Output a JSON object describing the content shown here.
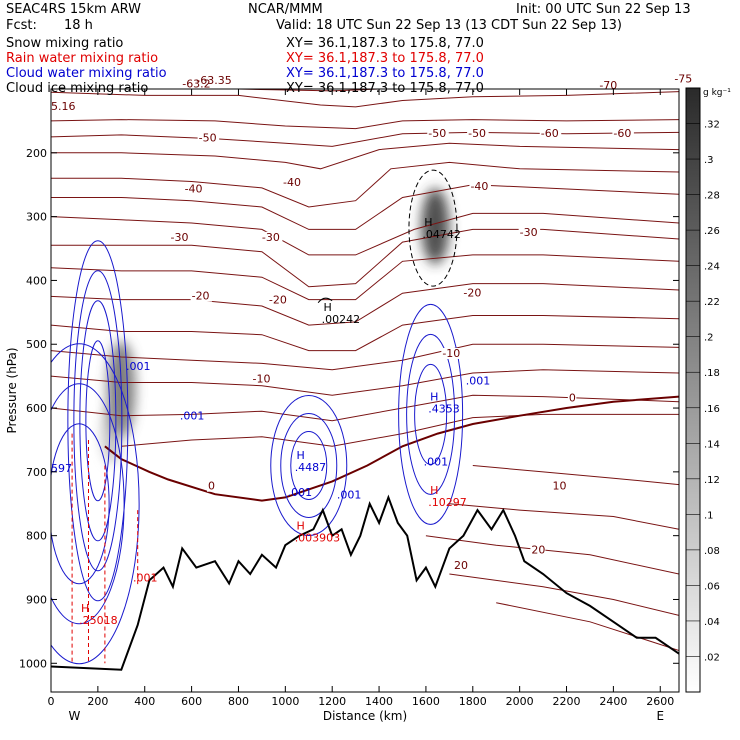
{
  "header": {
    "model": "SEAC4RS 15km ARW",
    "center": "NCAR/MMM",
    "init": "Init: 00 UTC Sun 22 Sep 13",
    "fcst_label": "Fcst:",
    "fcst_value": "18 h",
    "valid": "Valid: 18 UTC Sun 22 Sep 13 (13 CDT Sun 22 Sep 13)"
  },
  "fields": [
    {
      "name": "Snow mixing ratio",
      "xy": "XY=  36.1,187.3 to 175.8, 77.0",
      "color": "#000000"
    },
    {
      "name": "Rain water mixing ratio",
      "xy": "XY=  36.1,187.3 to 175.8, 77.0",
      "color": "#e00000"
    },
    {
      "name": "Cloud water mixing ratio",
      "xy": "XY=  36.1,187.3 to 175.8, 77.0",
      "color": "#0000d0"
    },
    {
      "name": "Cloud ice mixing ratio",
      "xy": "XY=  36.1,187.3 to 175.8, 77.0",
      "color": "#000000"
    }
  ],
  "chart_data": {
    "type": "cross-section contour",
    "xlabel": "Distance (km)",
    "ylabel": "Pressure (hPa)",
    "xlim": [
      0,
      2680
    ],
    "ylim": [
      1000,
      100
    ],
    "x_ticks": [
      0,
      200,
      400,
      600,
      800,
      1000,
      1200,
      1400,
      1600,
      1800,
      2000,
      2200,
      2400,
      2600
    ],
    "y_ticks": [
      1000,
      900,
      800,
      700,
      600,
      500,
      400,
      300,
      200
    ],
    "y_tick_labels": [
      "1000",
      "900",
      "800",
      "700",
      "600",
      "500",
      "400",
      "300",
      "200"
    ],
    "x_end_labels": {
      "left": "W",
      "right": "E"
    },
    "colorbar": {
      "unit": "g kg⁻¹",
      "labels": [
        ".02",
        ".04",
        ".06",
        ".08",
        ".1",
        ".12",
        ".14",
        ".16",
        ".18",
        ".2",
        ".22",
        ".24",
        ".26",
        ".28",
        ".3",
        ".32"
      ]
    },
    "temperature_contour_labels": [
      {
        "x": 620,
        "p": 92,
        "text": "-63.35"
      },
      {
        "x": 560,
        "p": 98,
        "text": "-63.2"
      },
      {
        "x": 2340,
        "p": 100,
        "text": "-70"
      },
      {
        "x": 2660,
        "p": 90,
        "text": "-75"
      },
      {
        "x": 0,
        "p": 133,
        "text": "5.16"
      },
      {
        "x": 630,
        "p": 182,
        "text": "-50"
      },
      {
        "x": 1610,
        "p": 175,
        "text": "-50"
      },
      {
        "x": 1780,
        "p": 175,
        "text": "-50"
      },
      {
        "x": 2090,
        "p": 175,
        "text": "-60"
      },
      {
        "x": 2400,
        "p": 175,
        "text": "-60"
      },
      {
        "x": 570,
        "p": 262,
        "text": "-40"
      },
      {
        "x": 990,
        "p": 252,
        "text": "-40"
      },
      {
        "x": 1790,
        "p": 258,
        "text": "-40"
      },
      {
        "x": 510,
        "p": 338,
        "text": "-30"
      },
      {
        "x": 900,
        "p": 338,
        "text": "-30"
      },
      {
        "x": 2000,
        "p": 330,
        "text": "-30"
      },
      {
        "x": 600,
        "p": 430,
        "text": "-20"
      },
      {
        "x": 930,
        "p": 436,
        "text": "-20"
      },
      {
        "x": 1760,
        "p": 425,
        "text": "-20"
      },
      {
        "x": 860,
        "p": 560,
        "text": "-10"
      },
      {
        "x": 1670,
        "p": 520,
        "text": "-10"
      },
      {
        "x": 670,
        "p": 728,
        "text": "0"
      },
      {
        "x": 2210,
        "p": 590,
        "text": "0"
      },
      {
        "x": 2140,
        "p": 728,
        "text": "10"
      },
      {
        "x": 1720,
        "p": 852,
        "text": "20"
      },
      {
        "x": 2050,
        "p": 828,
        "text": "20"
      }
    ],
    "maxima_labels": [
      {
        "x": 1585,
        "p": 315,
        "h": "H",
        "value": ".04742",
        "color": "#000000"
      },
      {
        "x": 1155,
        "p": 448,
        "h": "H",
        "value": ".00242",
        "color": "#000000"
      },
      {
        "x": 1610,
        "p": 588,
        "h": "H",
        "value": ".4353",
        "color": "#0000d0"
      },
      {
        "x": 1040,
        "p": 680,
        "h": "H",
        "value": ".4487",
        "color": "#0000d0"
      },
      {
        "x": 1040,
        "p": 790,
        "h": "H",
        "value": ".003903",
        "color": "#e00000"
      },
      {
        "x": 120,
        "p": 920,
        "h": "H",
        "value": ".25018",
        "color": "#e00000"
      },
      {
        "x": 1610,
        "p": 735,
        "h": "H",
        "value": ".10297",
        "color": "#e00000"
      }
    ],
    "minor_labels": [
      {
        "x": 320,
        "p": 540,
        "text": ".001",
        "color": "#0000d0"
      },
      {
        "x": 550,
        "p": 618,
        "text": ".001",
        "color": "#0000d0"
      },
      {
        "x": 1770,
        "p": 563,
        "text": ".001",
        "color": "#0000d0"
      },
      {
        "x": 1590,
        "p": 690,
        "text": ".001",
        "color": "#0000d0"
      },
      {
        "x": 1010,
        "p": 738,
        "text": ".001",
        "color": "#0000d0"
      },
      {
        "x": 1220,
        "p": 742,
        "text": ".001",
        "color": "#0000d0"
      },
      {
        "x": 350,
        "p": 872,
        "text": ".001",
        "color": "#e00000"
      },
      {
        "x": 0,
        "p": 700,
        "text": "597",
        "color": "#0000d0"
      }
    ]
  }
}
